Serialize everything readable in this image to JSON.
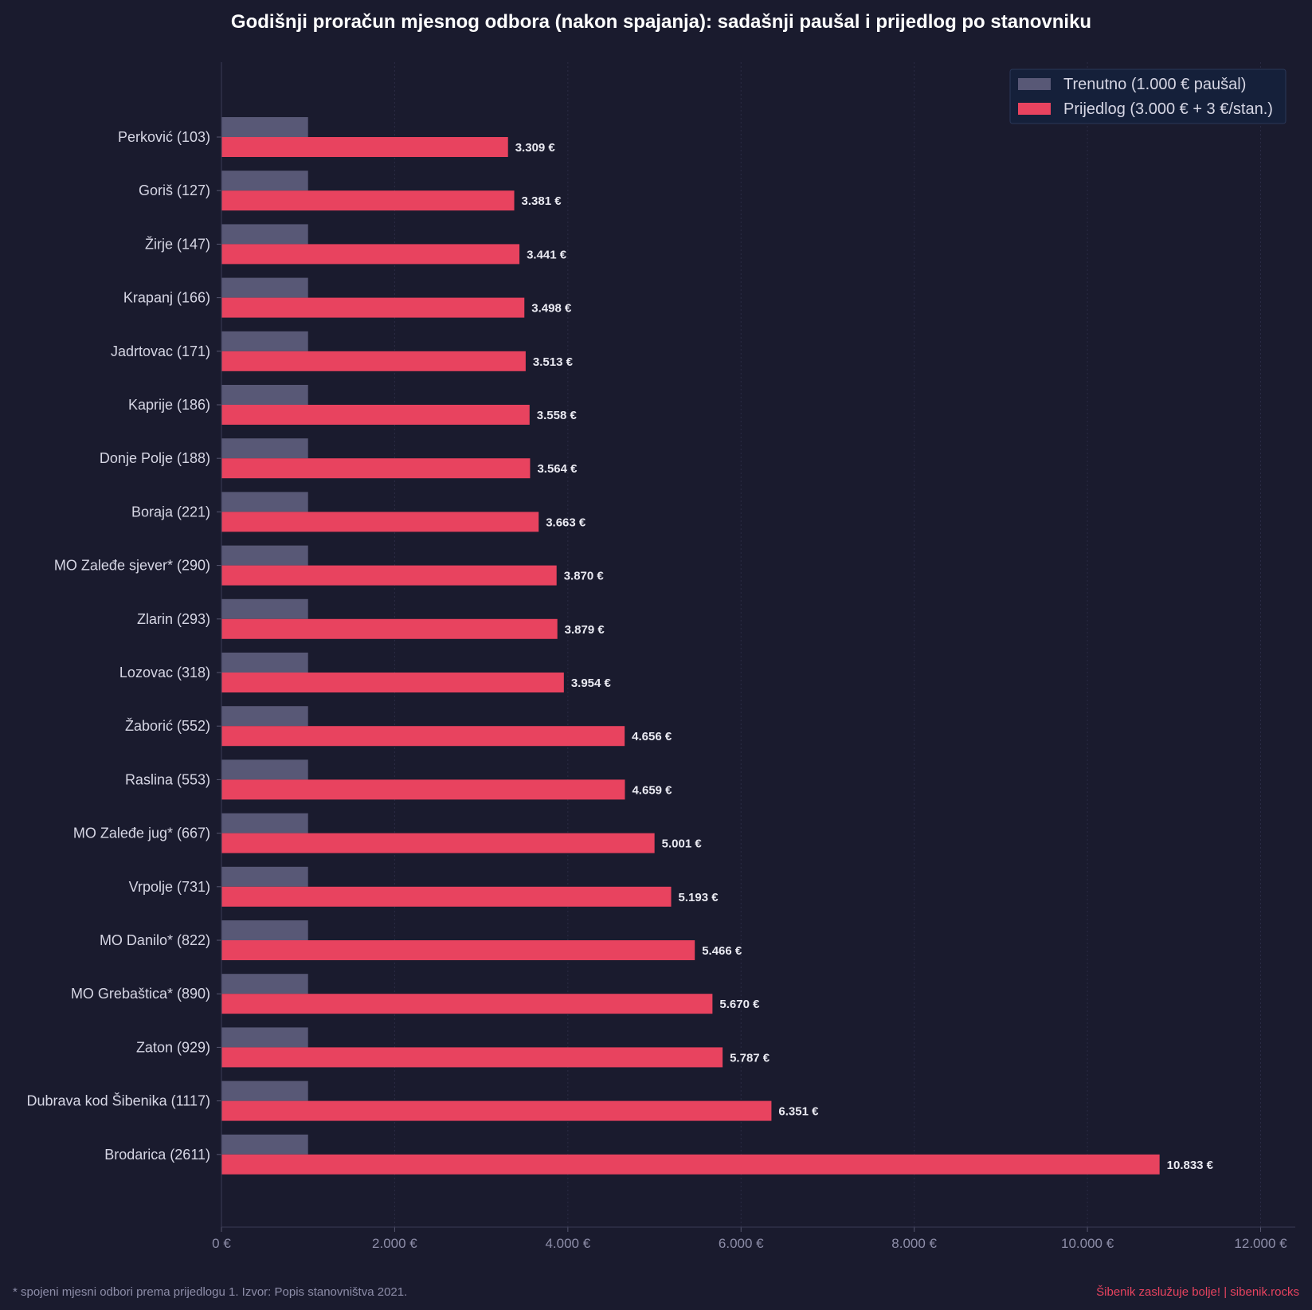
{
  "chart_data": {
    "type": "bar",
    "orientation": "horizontal",
    "title": "Godišnji proračun mjesnog odbora (nakon spajanja): sadašnji paušal i prijedlog po stanovniku",
    "categories": [
      "Perković  (103)",
      "Goriš  (127)",
      "Žirje  (147)",
      "Krapanj  (166)",
      "Jadrtovac  (171)",
      "Kaprije  (186)",
      "Donje Polje  (188)",
      "Boraja  (221)",
      "MO Zaleđe sjever*  (290)",
      "Zlarin  (293)",
      "Lozovac  (318)",
      "Žaborić  (552)",
      "Raslina  (553)",
      "MO Zaleđe jug*  (667)",
      "Vrpolje  (731)",
      "MO Danilo*  (822)",
      "MO Grebaštica*  (890)",
      "Zaton  (929)",
      "Dubrava kod Šibenika  (1117)",
      "Brodarica  (2611)"
    ],
    "series": [
      {
        "name": "Trenutno (1.000 € paušal)",
        "color": "#585876",
        "values": [
          1000,
          1000,
          1000,
          1000,
          1000,
          1000,
          1000,
          1000,
          1000,
          1000,
          1000,
          1000,
          1000,
          1000,
          1000,
          1000,
          1000,
          1000,
          1000,
          1000
        ]
      },
      {
        "name": "Prijedlog (3.000 € + 3 €/stan.)",
        "color": "#e8435f",
        "values": [
          3309,
          3381,
          3441,
          3498,
          3513,
          3558,
          3564,
          3663,
          3870,
          3879,
          3954,
          4656,
          4659,
          5001,
          5193,
          5466,
          5670,
          5787,
          6351,
          10833
        ],
        "labels": [
          "3.309 €",
          "3.381 €",
          "3.441 €",
          "3.498 €",
          "3.513 €",
          "3.558 €",
          "3.564 €",
          "3.663 €",
          "3.870 €",
          "3.879 €",
          "3.954 €",
          "4.656 €",
          "4.659 €",
          "5.001 €",
          "5.193 €",
          "5.466 €",
          "5.670 €",
          "5.787 €",
          "6.351 €",
          "10.833 €"
        ]
      }
    ],
    "xlim": [
      0,
      12400
    ],
    "xticks": [
      0,
      2000,
      4000,
      6000,
      8000,
      10000,
      12000
    ],
    "xtick_labels": [
      "0 €",
      "2.000 €",
      "4.000 €",
      "6.000 €",
      "8.000 €",
      "10.000 €",
      "12.000 €"
    ],
    "xlabel": "",
    "ylabel": "",
    "grid": "vertical",
    "legend_position": "top-right"
  },
  "footer": {
    "left": "* spojeni mjesni odbori prema prijedlogu 1.  Izvor: Popis stanovništva 2021.",
    "right": "Šibenik zaslužuje bolje!  |  sibenik.rocks"
  }
}
